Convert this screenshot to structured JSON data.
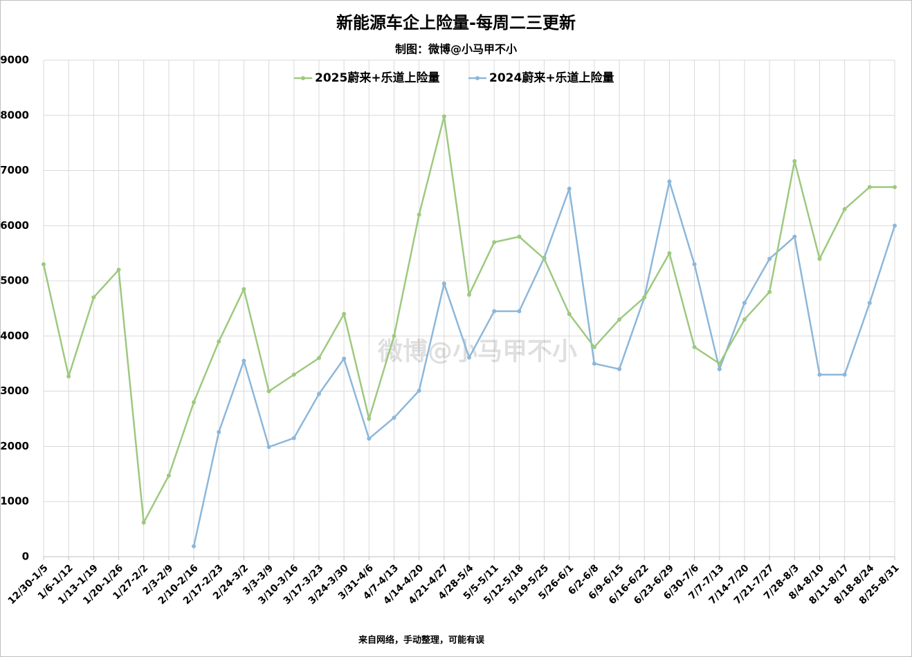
{
  "chart_data": {
    "type": "line",
    "title": "新能源车企上险量-每周二三更新",
    "subtitle": "制图：微博@小马甲不小",
    "footer": "来自网络，手动整理，可能有误",
    "watermark": "微博@小马甲不小",
    "categories": [
      "12/30-1/5",
      "1/6-1/12",
      "1/13-1/19",
      "1/20-1/26",
      "1/27-2/2",
      "2/3-2/9",
      "2/10-2/16",
      "2/17-2/23",
      "2/24-3/2",
      "3/3-3/9",
      "3/10-3/16",
      "3/17-3/23",
      "3/24-3/30",
      "3/31-4/6",
      "4/7-4/13",
      "4/14-4/20",
      "4/21-4/27",
      "4/28-5/4",
      "5/5-5/11",
      "5/12-5/18",
      "5/19-5/25",
      "5/26-6/1",
      "6/2-6/8",
      "6/9-6/15",
      "6/16-6/22",
      "6/23-6/29",
      "6/30-7/6",
      "7/7-7/13",
      "7/14-7/20",
      "7/21-7/27",
      "7/28-8/3",
      "8/4-8/10",
      "8/11-8/17",
      "8/18-8/24",
      "8/25-8/31"
    ],
    "series": [
      {
        "name": "2025蔚来+乐道上险量",
        "color": "#9dc97f",
        "values": [
          5300,
          3270,
          4700,
          5200,
          620,
          1470,
          2800,
          3900,
          4850,
          3000,
          3300,
          3600,
          4400,
          2500,
          4000,
          6200,
          7980,
          4750,
          5700,
          5800,
          5400,
          4400,
          3800,
          4300,
          4700,
          5500,
          3800,
          3500,
          4300,
          4800,
          7170,
          5400,
          6300,
          6700,
          6700
        ]
      },
      {
        "name": "2024蔚来+乐道上险量",
        "color": "#8cb7da",
        "values": [
          null,
          null,
          null,
          null,
          null,
          null,
          190,
          2260,
          3550,
          1990,
          2150,
          2950,
          3590,
          2140,
          2520,
          3010,
          4950,
          3610,
          4450,
          4450,
          5420,
          6670,
          3500,
          3400,
          4700,
          6800,
          5300,
          3400,
          4600,
          5400,
          5800,
          3300,
          3300,
          4600,
          6000
        ]
      }
    ],
    "ylim": [
      0,
      9000
    ],
    "yticks": [
      0,
      1000,
      2000,
      3000,
      4000,
      5000,
      6000,
      7000,
      8000,
      9000
    ],
    "grid": true,
    "legend": "top"
  }
}
